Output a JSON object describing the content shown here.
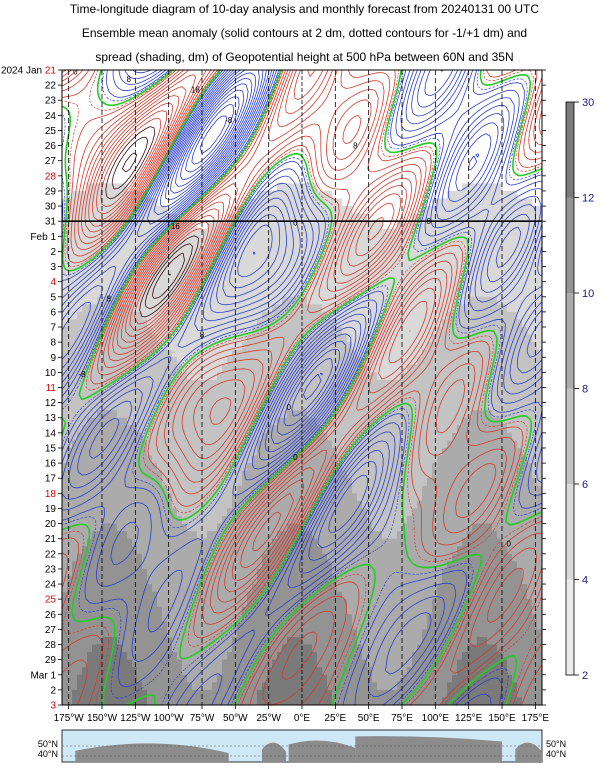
{
  "title_lines": [
    "Time-longitude diagram of 10-day analysis and monthly forecast from 20240131 00 UTC",
    "Ensemble mean anomaly (solid contours at 2 dm, dotted contours for -1/+1 dm) and",
    "spread (shading, dm) of Geopotential height at 500 hPa between 60N and 35N"
  ],
  "chart_data": {
    "type": "heatmap",
    "x_ticks": [
      "175°W",
      "150°W",
      "125°W",
      "100°W",
      "75°W",
      "50°W",
      "25°W",
      "0°E",
      "25°E",
      "50°E",
      "75°E",
      "100°E",
      "125°E",
      "150°E",
      "175°E"
    ],
    "x_values": [
      -175,
      -150,
      -125,
      -100,
      -75,
      -50,
      -25,
      0,
      25,
      50,
      75,
      100,
      125,
      150,
      175
    ],
    "xlim": [
      -180,
      180
    ],
    "y_labels": [
      {
        "text": "2024 Jan",
        "day": "21",
        "red": true
      },
      {
        "text": "",
        "day": "22",
        "red": false
      },
      {
        "text": "",
        "day": "23",
        "red": false
      },
      {
        "text": "",
        "day": "24",
        "red": false
      },
      {
        "text": "",
        "day": "25",
        "red": false
      },
      {
        "text": "",
        "day": "26",
        "red": false
      },
      {
        "text": "",
        "day": "27",
        "red": false
      },
      {
        "text": "",
        "day": "28",
        "red": true
      },
      {
        "text": "",
        "day": "29",
        "red": false
      },
      {
        "text": "",
        "day": "30",
        "red": false
      },
      {
        "text": "",
        "day": "31",
        "red": false
      },
      {
        "text": "Feb",
        "day": "1",
        "red": false
      },
      {
        "text": "",
        "day": "2",
        "red": false
      },
      {
        "text": "",
        "day": "3",
        "red": false
      },
      {
        "text": "",
        "day": "4",
        "red": true
      },
      {
        "text": "",
        "day": "5",
        "red": false
      },
      {
        "text": "",
        "day": "6",
        "red": false
      },
      {
        "text": "",
        "day": "7",
        "red": false
      },
      {
        "text": "",
        "day": "8",
        "red": false
      },
      {
        "text": "",
        "day": "9",
        "red": false
      },
      {
        "text": "",
        "day": "10",
        "red": false
      },
      {
        "text": "",
        "day": "11",
        "red": true
      },
      {
        "text": "",
        "day": "12",
        "red": false
      },
      {
        "text": "",
        "day": "13",
        "red": false
      },
      {
        "text": "",
        "day": "14",
        "red": false
      },
      {
        "text": "",
        "day": "15",
        "red": false
      },
      {
        "text": "",
        "day": "16",
        "red": false
      },
      {
        "text": "",
        "day": "17",
        "red": false
      },
      {
        "text": "",
        "day": "18",
        "red": true
      },
      {
        "text": "",
        "day": "19",
        "red": false
      },
      {
        "text": "",
        "day": "20",
        "red": false
      },
      {
        "text": "",
        "day": "21",
        "red": false
      },
      {
        "text": "",
        "day": "22",
        "red": false
      },
      {
        "text": "",
        "day": "23",
        "red": false
      },
      {
        "text": "",
        "day": "24",
        "red": false
      },
      {
        "text": "",
        "day": "25",
        "red": true
      },
      {
        "text": "",
        "day": "26",
        "red": false
      },
      {
        "text": "",
        "day": "27",
        "red": false
      },
      {
        "text": "",
        "day": "28",
        "red": false
      },
      {
        "text": "",
        "day": "29",
        "red": false
      },
      {
        "text": "Mar",
        "day": "1",
        "red": false
      },
      {
        "text": "",
        "day": "2",
        "red": false
      },
      {
        "text": "",
        "day": "3",
        "red": true
      }
    ],
    "analysis_end_label": "31",
    "colorbar": {
      "ticks": [
        "30",
        "12",
        "10",
        "8",
        "6",
        "4",
        "2"
      ],
      "levels": [
        30,
        12,
        10,
        8,
        6,
        4,
        2
      ],
      "colors": [
        "#7a7a7a",
        "#939393",
        "#ababab",
        "#c3c3c3",
        "#d9d9d9",
        "#ececec"
      ]
    },
    "anomaly_colors": {
      "positive": "#d63a2c",
      "negative": "#2b3fcf",
      "zero": "#22cc22",
      "dark": "#3a0c0c"
    },
    "map_lat_labels": [
      "50°N",
      "40°N"
    ],
    "contour_labels": [
      "0",
      "8",
      "16",
      "24",
      "-8",
      "-16"
    ]
  }
}
